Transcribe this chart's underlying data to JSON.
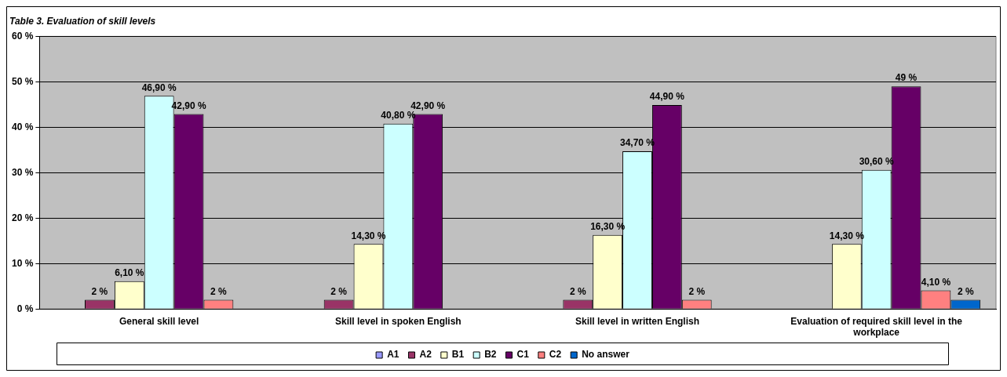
{
  "chart_data": {
    "type": "bar",
    "title": "Table 3. Evaluation of skill levels",
    "categories": [
      "General skill level",
      "Skill level in spoken English",
      "Skill level in written English",
      "Evaluation of required skill level in the workplace"
    ],
    "series": [
      {
        "name": "A1",
        "color": "#9999ff",
        "values": [
          null,
          null,
          null,
          null
        ],
        "value_labels": [
          null,
          null,
          null,
          null
        ]
      },
      {
        "name": "A2",
        "color": "#993366",
        "values": [
          2,
          2,
          2,
          null
        ],
        "value_labels": [
          "2 %",
          "2 %",
          "2 %",
          null
        ]
      },
      {
        "name": "B1",
        "color": "#ffffcc",
        "values": [
          6.1,
          14.3,
          16.3,
          14.3
        ],
        "value_labels": [
          "6,10 %",
          "14,30 %",
          "16,30 %",
          "14,30 %"
        ]
      },
      {
        "name": "B2",
        "color": "#ccffff",
        "values": [
          46.9,
          40.8,
          34.7,
          30.6
        ],
        "value_labels": [
          "46,90 %",
          "40,80 %",
          "34,70 %",
          "30,60 %"
        ]
      },
      {
        "name": "C1",
        "color": "#660066",
        "values": [
          42.9,
          42.9,
          44.9,
          49
        ],
        "value_labels": [
          "42,90 %",
          "42,90 %",
          "44,90 %",
          "49 %"
        ]
      },
      {
        "name": "C2",
        "color": "#ff8080",
        "values": [
          2,
          null,
          2,
          4.1
        ],
        "value_labels": [
          "2 %",
          null,
          "2 %",
          "4,10 %"
        ]
      },
      {
        "name": "No answer",
        "color": "#0066cc",
        "values": [
          null,
          null,
          null,
          2
        ],
        "value_labels": [
          null,
          null,
          null,
          "2 %"
        ]
      }
    ],
    "ylim": [
      0,
      60
    ],
    "yticks": [
      {
        "value": 0,
        "label": "0 %"
      },
      {
        "value": 10,
        "label": "10 %"
      },
      {
        "value": 20,
        "label": "20 %"
      },
      {
        "value": 30,
        "label": "30 %"
      },
      {
        "value": 40,
        "label": "40 %"
      },
      {
        "value": 50,
        "label": "50 %"
      },
      {
        "value": 60,
        "label": "60 %"
      }
    ],
    "grid": "y",
    "legend": "bottom"
  }
}
